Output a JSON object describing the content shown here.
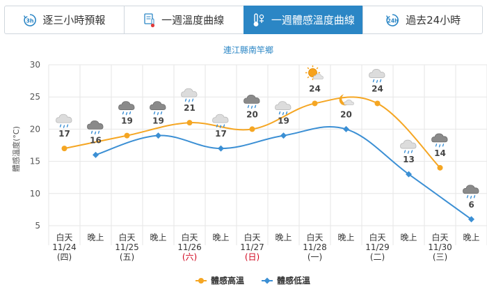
{
  "tabs": [
    {
      "label": "逐三小時預報",
      "icon": "3h-clock-icon",
      "active": false
    },
    {
      "label": "一週溫度曲線",
      "icon": "thermometer-doc-icon",
      "active": false
    },
    {
      "label": "一週體感溫度曲線",
      "icon": "feels-like-thermometer-icon",
      "active": true
    },
    {
      "label": "過去24小時",
      "icon": "24h-clock-icon",
      "active": false
    }
  ],
  "chart_data": {
    "type": "line",
    "title": "連江縣南竿鄉",
    "ylabel": "體感溫度(°C)",
    "xlabel": "",
    "ylim": [
      5,
      30
    ],
    "yticks": [
      5,
      10,
      15,
      20,
      25,
      30
    ],
    "grid": true,
    "legend_position": "bottom-center",
    "categories": [
      {
        "period": "白天",
        "date": "11/24",
        "weekday": "(四)",
        "highlight": false
      },
      {
        "period": "晚上",
        "date": "",
        "weekday": "",
        "highlight": false
      },
      {
        "period": "白天",
        "date": "11/25",
        "weekday": "(五)",
        "highlight": false
      },
      {
        "period": "晚上",
        "date": "",
        "weekday": "",
        "highlight": false
      },
      {
        "period": "白天",
        "date": "11/26",
        "weekday": "(六)",
        "highlight": true
      },
      {
        "period": "晚上",
        "date": "",
        "weekday": "",
        "highlight": false
      },
      {
        "period": "白天",
        "date": "11/27",
        "weekday": "(日)",
        "highlight": true
      },
      {
        "period": "晚上",
        "date": "",
        "weekday": "",
        "highlight": false
      },
      {
        "period": "白天",
        "date": "11/28",
        "weekday": "(一)",
        "highlight": false
      },
      {
        "period": "晚上",
        "date": "",
        "weekday": "",
        "highlight": false
      },
      {
        "period": "白天",
        "date": "11/29",
        "weekday": "(二)",
        "highlight": false
      },
      {
        "period": "晚上",
        "date": "",
        "weekday": "",
        "highlight": false
      },
      {
        "period": "白天",
        "date": "11/30",
        "weekday": "(三)",
        "highlight": false
      },
      {
        "period": "晚上",
        "date": "",
        "weekday": "",
        "highlight": false
      }
    ],
    "series": [
      {
        "name": "體感高溫",
        "color": "#f5a623",
        "values": [
          17,
          null,
          19,
          null,
          21,
          null,
          20,
          null,
          24,
          null,
          24,
          null,
          14,
          null
        ],
        "icons": [
          "cloud-drizzle-icon",
          null,
          "dark-cloud-rain-icon",
          null,
          "cloud-drizzle-icon",
          null,
          "dark-cloud-rain-icon",
          null,
          "sun-cloud-icon",
          null,
          "cloud-drizzle-icon",
          null,
          "dark-cloud-rain-icon",
          null
        ]
      },
      {
        "name": "體感低溫",
        "color": "#3b8fd4",
        "values": [
          null,
          16,
          null,
          19,
          null,
          17,
          null,
          19,
          null,
          20,
          null,
          13,
          null,
          6
        ],
        "icons": [
          null,
          "dark-cloud-rain-icon",
          null,
          "dark-cloud-rain-icon",
          null,
          "cloud-drizzle-icon",
          null,
          "cloud-drizzle-icon",
          null,
          "moon-cloud-icon",
          null,
          "cloud-drizzle-icon",
          null,
          "dark-cloud-rain-icon"
        ]
      }
    ],
    "colors": {
      "grid": "#e6e6e6",
      "axis_text": "#555555",
      "highlight_text": "#d0021b",
      "title": "#2b86c5"
    }
  }
}
